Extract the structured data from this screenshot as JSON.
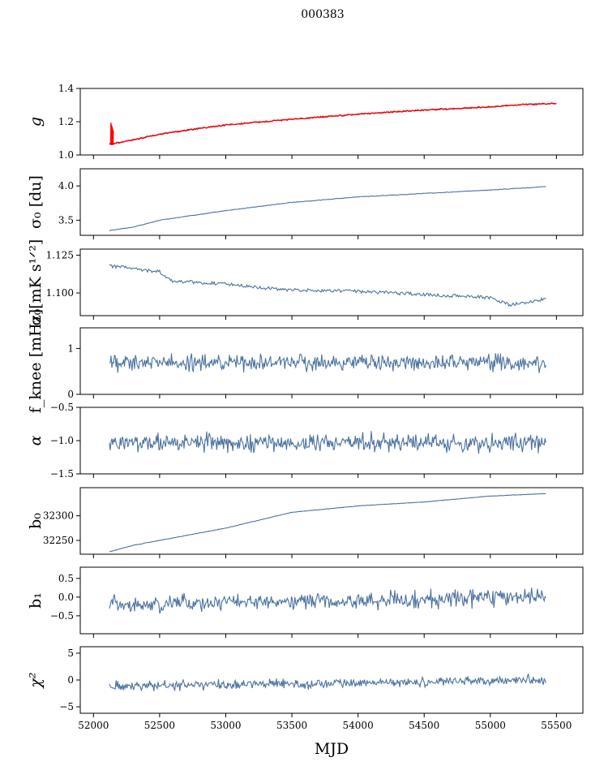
{
  "chart_data": {
    "type": "line",
    "title": "000383",
    "xlabel": "MJD",
    "xlim": [
      51900,
      55700
    ],
    "xticks": [
      52000,
      52500,
      53000,
      53500,
      54000,
      54500,
      55000,
      55500
    ],
    "xtick_labels": [
      "52000",
      "52500",
      "53000",
      "53500",
      "54000",
      "54500",
      "55000",
      "55500"
    ],
    "x_start": 52120,
    "panels": [
      {
        "id": "g",
        "ylabel": "g",
        "ylim": [
          1.0,
          1.4
        ],
        "yticks": [
          1.0,
          1.2,
          1.4
        ],
        "ytick_labels": [
          "1.0",
          "1.2",
          "1.4"
        ],
        "x_end": 55500,
        "series": [
          {
            "name": "g",
            "color": "#4c72a0",
            "kind": "trend",
            "anchors": [
              [
                52120,
                1.065
              ],
              [
                52300,
                1.09
              ],
              [
                52500,
                1.125
              ],
              [
                52800,
                1.16
              ],
              [
                53000,
                1.18
              ],
              [
                53500,
                1.215
              ],
              [
                54000,
                1.245
              ],
              [
                54500,
                1.27
              ],
              [
                55000,
                1.29
              ],
              [
                55300,
                1.305
              ],
              [
                55500,
                1.31
              ]
            ],
            "noise": 0.003
          },
          {
            "name": "g fit",
            "color": "#ff0000",
            "kind": "trend",
            "anchors": [
              [
                52120,
                1.065
              ],
              [
                52300,
                1.09
              ],
              [
                52500,
                1.125
              ],
              [
                52800,
                1.16
              ],
              [
                53000,
                1.18
              ],
              [
                53500,
                1.215
              ],
              [
                54000,
                1.245
              ],
              [
                54500,
                1.27
              ],
              [
                55000,
                1.29
              ],
              [
                55300,
                1.305
              ],
              [
                55500,
                1.31
              ]
            ],
            "noise": 0.004,
            "spike": {
              "x": 52130,
              "low": 1.06,
              "high": 1.2
            }
          }
        ]
      },
      {
        "id": "sigma0-du",
        "ylabel": "σ₀ [du]",
        "ylim": [
          3.28,
          4.25
        ],
        "yticks": [
          3.5,
          4.0
        ],
        "ytick_labels": [
          "3.5",
          "4.0"
        ],
        "x_end": 55420,
        "series": [
          {
            "name": "sigma0",
            "color": "#4c72a0",
            "kind": "trend",
            "anchors": [
              [
                52120,
                3.35
              ],
              [
                52300,
                3.4
              ],
              [
                52500,
                3.5
              ],
              [
                53000,
                3.64
              ],
              [
                53500,
                3.76
              ],
              [
                54000,
                3.84
              ],
              [
                54500,
                3.89
              ],
              [
                55000,
                3.94
              ],
              [
                55420,
                3.99
              ]
            ],
            "noise": 0.004
          }
        ]
      },
      {
        "id": "sigma0-mk",
        "ylabel": "σ₀[mK s¹ᐟ²]",
        "ylim": [
          1.085,
          1.129
        ],
        "yticks": [
          1.1,
          1.125
        ],
        "ytick_labels": [
          "1.100",
          "1.125"
        ],
        "x_end": 55420,
        "series": [
          {
            "name": "sigma0 mK",
            "color": "#4c72a0",
            "kind": "trend",
            "anchors": [
              [
                52120,
                1.118
              ],
              [
                52500,
                1.114
              ],
              [
                52600,
                1.108
              ],
              [
                53000,
                1.106
              ],
              [
                53200,
                1.104
              ],
              [
                53500,
                1.102
              ],
              [
                54000,
                1.101
              ],
              [
                54500,
                1.099
              ],
              [
                55000,
                1.097
              ],
              [
                55150,
                1.092
              ],
              [
                55420,
                1.096
              ]
            ],
            "noise": 0.0011
          }
        ]
      },
      {
        "id": "fknee",
        "ylabel": "f_knee [mHz]",
        "ylim": [
          0,
          1.45
        ],
        "yticks": [
          0,
          1
        ],
        "ytick_labels": [
          "0",
          "1"
        ],
        "x_end": 55420,
        "series": [
          {
            "name": "fknee",
            "color": "#4c72a0",
            "kind": "noise",
            "mean": 0.7,
            "amp": 0.13,
            "seed": 11
          }
        ]
      },
      {
        "id": "alpha",
        "ylabel": "α",
        "ylim": [
          -1.5,
          -0.5
        ],
        "yticks": [
          -1.5,
          -1.0,
          -0.5
        ],
        "ytick_labels": [
          "−1.5",
          "−1.0",
          "−0.5"
        ],
        "x_end": 55420,
        "series": [
          {
            "name": "alpha",
            "color": "#4c72a0",
            "kind": "noise",
            "mean": -1.03,
            "amp": 0.1,
            "seed": 23
          }
        ]
      },
      {
        "id": "b0",
        "ylabel": "b₀",
        "ylim": [
          32222,
          32357
        ],
        "yticks": [
          32250,
          32300
        ],
        "ytick_labels": [
          "32250",
          "32300"
        ],
        "x_end": 55420,
        "series": [
          {
            "name": "b0",
            "color": "#4c72a0",
            "kind": "trend",
            "anchors": [
              [
                52120,
                32227
              ],
              [
                52300,
                32240
              ],
              [
                52500,
                32250
              ],
              [
                53000,
                32275
              ],
              [
                53500,
                32307
              ],
              [
                54000,
                32320
              ],
              [
                54500,
                32328
              ],
              [
                55000,
                32340
              ],
              [
                55420,
                32345
              ]
            ],
            "noise": 0.4
          }
        ]
      },
      {
        "id": "b1",
        "ylabel": "b₁",
        "ylim": [
          -0.98,
          0.8
        ],
        "yticks": [
          -0.5,
          0.0,
          0.5
        ],
        "ytick_labels": [
          "−0.5",
          "0.0",
          "0.5"
        ],
        "x_end": 55420,
        "series": [
          {
            "name": "b1",
            "color": "#4c72a0",
            "kind": "noise",
            "mean": -0.2,
            "mean_end": 0.0,
            "amp": 0.16,
            "seed": 37
          }
        ]
      },
      {
        "id": "chi2",
        "ylabel": "χ²",
        "ylim": [
          -6.2,
          6.2
        ],
        "yticks": [
          -5,
          0,
          5
        ],
        "ytick_labels": [
          "−5",
          "0",
          "5"
        ],
        "x_end": 55420,
        "series": [
          {
            "name": "chi2",
            "color": "#4c72a0",
            "kind": "noise",
            "mean": -1.2,
            "mean_end": 0.0,
            "amp": 0.65,
            "seed": 53
          }
        ]
      }
    ]
  }
}
